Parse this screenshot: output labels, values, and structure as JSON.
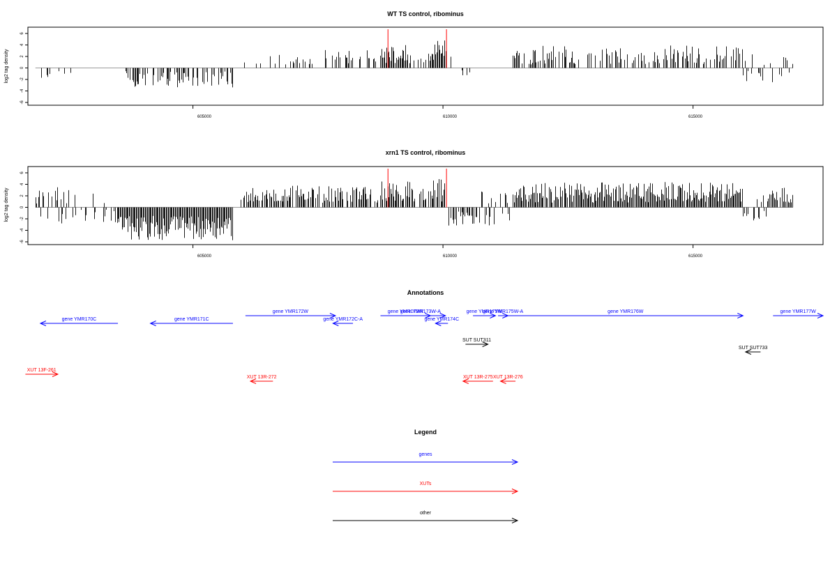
{
  "colors": {
    "gene": "#0000ff",
    "xut": "#ff0000",
    "other": "#000000",
    "marker": "#ff0000",
    "zero_line": "#999999"
  },
  "x_ticks": [
    "605000",
    "610000",
    "615000"
  ],
  "chart_data": [
    {
      "type": "bar",
      "title": "WT TS control, ribominus",
      "ylabel": "log2 tag density",
      "xlim": [
        601700,
        617600
      ],
      "ylim": [
        -6,
        6
      ],
      "y_ticks": [
        "6",
        "4",
        "2",
        "0",
        "-2",
        "-4",
        "-6"
      ],
      "x_ticks": [
        605000,
        610000,
        615000
      ],
      "red_markers": [
        608900,
        610070
      ],
      "regions": [
        {
          "from": 601850,
          "to": 602700,
          "mode": "neg",
          "density": 0.25,
          "min": 0.3,
          "max": 1.9
        },
        {
          "from": 603650,
          "to": 605800,
          "mode": "neg",
          "density": 0.6,
          "min": 0.5,
          "max": 3.4
        },
        {
          "from": 606000,
          "to": 607400,
          "mode": "pos",
          "density": 0.3,
          "min": 0.6,
          "max": 2.4
        },
        {
          "from": 607600,
          "to": 608700,
          "mode": "pos",
          "density": 0.45,
          "min": 0.8,
          "max": 3.2
        },
        {
          "from": 608750,
          "to": 609350,
          "mode": "pos",
          "density": 0.95,
          "min": 0.8,
          "max": 4.0
        },
        {
          "from": 609350,
          "to": 609750,
          "mode": "pos",
          "density": 0.6,
          "min": 0.6,
          "max": 3.0
        },
        {
          "from": 609750,
          "to": 610070,
          "mode": "pos",
          "density": 0.95,
          "min": 1.0,
          "max": 5.0
        },
        {
          "from": 610150,
          "to": 610900,
          "mode": "mixneg",
          "density": 0.15,
          "min": 0.4,
          "max": 2.0
        },
        {
          "from": 611400,
          "to": 616000,
          "mode": "pos",
          "density": 0.55,
          "min": 0.6,
          "max": 4.0
        },
        {
          "from": 616000,
          "to": 617000,
          "mode": "mix",
          "density": 0.35,
          "min": 0.5,
          "max": 2.5
        }
      ]
    },
    {
      "type": "bar",
      "title": "xrn1 TS control, ribominus",
      "ylabel": "log2 tag density",
      "xlim": [
        601700,
        617600
      ],
      "ylim": [
        -6,
        6
      ],
      "y_ticks": [
        "6",
        "4",
        "2",
        "0",
        "-2",
        "-4",
        "-6"
      ],
      "x_ticks": [
        605000,
        610000,
        615000
      ],
      "red_markers": [
        608900,
        610070
      ],
      "regions": [
        {
          "from": 601850,
          "to": 602700,
          "mode": "mix",
          "density": 0.55,
          "min": 0.5,
          "max": 3.5
        },
        {
          "from": 602700,
          "to": 603500,
          "mode": "mix",
          "density": 0.25,
          "min": 0.4,
          "max": 3.0
        },
        {
          "from": 603500,
          "to": 605800,
          "mode": "neg",
          "density": 1.0,
          "min": 1.5,
          "max": 5.8
        },
        {
          "from": 605950,
          "to": 608700,
          "mode": "pos",
          "density": 0.75,
          "min": 0.8,
          "max": 3.8
        },
        {
          "from": 608750,
          "to": 609350,
          "mode": "pos",
          "density": 0.95,
          "min": 1.0,
          "max": 4.6
        },
        {
          "from": 609350,
          "to": 609750,
          "mode": "pos",
          "density": 0.6,
          "min": 0.8,
          "max": 3.6
        },
        {
          "from": 609750,
          "to": 610070,
          "mode": "pos",
          "density": 0.95,
          "min": 1.0,
          "max": 5.0
        },
        {
          "from": 610070,
          "to": 610700,
          "mode": "neg",
          "density": 0.7,
          "min": 0.5,
          "max": 3.2
        },
        {
          "from": 610700,
          "to": 611400,
          "mode": "mix",
          "density": 0.5,
          "min": 0.4,
          "max": 3.2
        },
        {
          "from": 611400,
          "to": 616000,
          "mode": "pos",
          "density": 0.95,
          "min": 0.8,
          "max": 4.4
        },
        {
          "from": 616000,
          "to": 616500,
          "mode": "mixneg",
          "density": 0.5,
          "min": 0.5,
          "max": 2.4
        },
        {
          "from": 616500,
          "to": 617000,
          "mode": "pos",
          "density": 0.9,
          "min": 0.8,
          "max": 3.4
        }
      ]
    }
  ],
  "annotations": {
    "title": "Annotations",
    "features": [
      {
        "label": "gene YMR170C",
        "kind": "gene",
        "strand": "-",
        "start": 601950,
        "end": 603500,
        "row": 1
      },
      {
        "label": "gene YMR171C",
        "kind": "gene",
        "strand": "-",
        "start": 604150,
        "end": 605800,
        "row": 1
      },
      {
        "label": "gene YMR172W",
        "kind": "gene",
        "strand": "+",
        "start": 606050,
        "end": 607850,
        "row": 0
      },
      {
        "label": "gene YMR172C-A",
        "kind": "gene",
        "strand": "-",
        "start": 607800,
        "end": 608200,
        "row": 1
      },
      {
        "label": "gene YMR173W",
        "kind": "gene",
        "strand": "+",
        "start": 608750,
        "end": 609750,
        "row": 0
      },
      {
        "label": "gene YMR173W-A",
        "kind": "gene",
        "strand": "+",
        "start": 609050,
        "end": 610050,
        "row": 0
      },
      {
        "label": "gene YMR174C",
        "kind": "gene",
        "strand": "-",
        "start": 609850,
        "end": 610100,
        "row": 1
      },
      {
        "label": "gene YMR175W",
        "kind": "gene",
        "strand": "+",
        "start": 610600,
        "end": 611050,
        "row": 0
      },
      {
        "label": "gene YMR175W-A",
        "kind": "gene",
        "strand": "+",
        "start": 611100,
        "end": 611300,
        "row": 0
      },
      {
        "label": "gene YMR176W",
        "kind": "gene",
        "strand": "+",
        "start": 611300,
        "end": 616000,
        "row": 0
      },
      {
        "label": "gene YMR177W",
        "kind": "gene",
        "strand": "+",
        "start": 616600,
        "end": 617600,
        "row": 0
      },
      {
        "label": "SUT SUT311",
        "kind": "other",
        "strand": "+",
        "start": 610450,
        "end": 610900,
        "row": 2
      },
      {
        "label": "SUT SUT733",
        "kind": "other",
        "strand": "-",
        "start": 616050,
        "end": 616350,
        "row": 3
      },
      {
        "label": "XUT 13F-261",
        "kind": "xut",
        "strand": "+",
        "start": 601650,
        "end": 602300,
        "row": 4
      },
      {
        "label": "XUT 13R-272",
        "kind": "xut",
        "strand": "-",
        "start": 606150,
        "end": 606600,
        "row": 5
      },
      {
        "label": "XUT 13R-275",
        "kind": "xut",
        "strand": "-",
        "start": 610400,
        "end": 611000,
        "row": 5
      },
      {
        "label": "XUT 13R-276",
        "kind": "xut",
        "strand": "-",
        "start": 611150,
        "end": 611450,
        "row": 5
      }
    ]
  },
  "legend": {
    "title": "Legend",
    "items": [
      {
        "label": "genes",
        "kind": "gene"
      },
      {
        "label": "XUTs",
        "kind": "xut"
      },
      {
        "label": "other",
        "kind": "other"
      }
    ]
  }
}
